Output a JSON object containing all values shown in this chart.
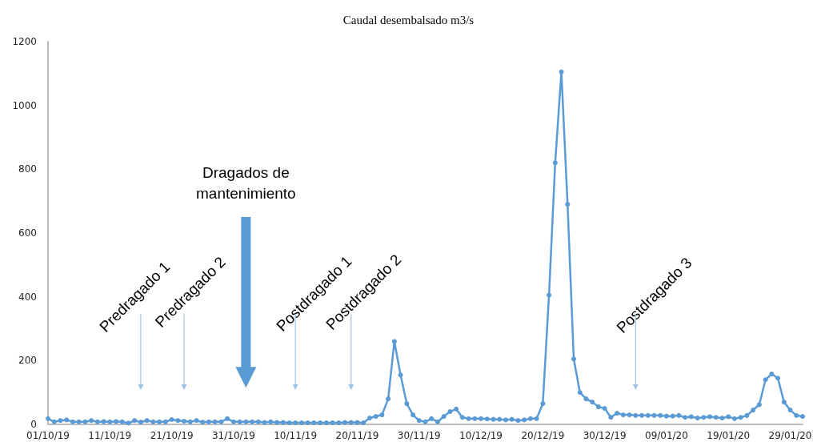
{
  "chart_data": {
    "type": "line",
    "title": "Caudal desembalsado m3/s",
    "categories": [
      "01/10/19",
      null,
      null,
      null,
      null,
      null,
      null,
      null,
      null,
      null,
      "11/10/19",
      null,
      null,
      null,
      null,
      null,
      null,
      null,
      null,
      null,
      "21/10/19",
      null,
      null,
      null,
      null,
      null,
      null,
      null,
      null,
      null,
      "31/10/19",
      null,
      null,
      null,
      null,
      null,
      null,
      null,
      null,
      null,
      "10/11/19",
      null,
      null,
      null,
      null,
      null,
      null,
      null,
      null,
      null,
      "20/11/19",
      null,
      null,
      null,
      null,
      null,
      null,
      null,
      null,
      null,
      "30/11/19",
      null,
      null,
      null,
      null,
      null,
      null,
      null,
      null,
      null,
      "10/12/19",
      null,
      null,
      null,
      null,
      null,
      null,
      null,
      null,
      null,
      "20/12/19",
      null,
      null,
      null,
      null,
      null,
      null,
      null,
      null,
      null,
      "30/12/19",
      null,
      null,
      null,
      null,
      null,
      null,
      null,
      null,
      null,
      "09/01/20",
      null,
      null,
      null,
      null,
      null,
      null,
      null,
      null,
      null,
      "19/01/20",
      null,
      null,
      null,
      null,
      null,
      null,
      null,
      null,
      null,
      "29/01/20",
      null,
      null
    ],
    "series": [
      {
        "color": "#5b9bd5",
        "values": [
          18,
          8,
          12,
          14,
          8,
          8,
          8,
          12,
          8,
          9,
          8,
          9,
          8,
          4,
          12,
          7,
          12,
          8,
          8,
          8,
          15,
          12,
          10,
          8,
          12,
          7,
          8,
          8,
          8,
          18,
          8,
          8,
          8,
          8,
          8,
          6,
          8,
          6,
          6,
          5,
          5,
          5,
          5,
          5,
          5,
          5,
          5,
          5,
          6,
          6,
          6,
          5,
          20,
          25,
          30,
          80,
          260,
          155,
          65,
          30,
          12,
          8,
          18,
          8,
          25,
          40,
          48,
          22,
          18,
          18,
          18,
          17,
          16,
          16,
          14,
          16,
          12,
          14,
          18,
          18,
          65,
          405,
          820,
          1105,
          690,
          205,
          100,
          80,
          70,
          55,
          50,
          22,
          35,
          30,
          30,
          28,
          28,
          28,
          28,
          28,
          26,
          26,
          28,
          22,
          24,
          20,
          22,
          24,
          22,
          20,
          24,
          18,
          22,
          28,
          45,
          62,
          140,
          158,
          145,
          70,
          45,
          28,
          25
        ]
      }
    ],
    "ylim": [
      0,
      1200
    ],
    "yticks": [
      0,
      200,
      400,
      600,
      800,
      1000,
      1200
    ],
    "grid": false,
    "marker": "circle",
    "line_style": "solid",
    "annotations": [
      "Predragado 1",
      "Predragado 2",
      "Dragados de\nmantenimiento",
      "Postdragado 1",
      "Postdragado 2",
      "Postdragado 3"
    ]
  }
}
